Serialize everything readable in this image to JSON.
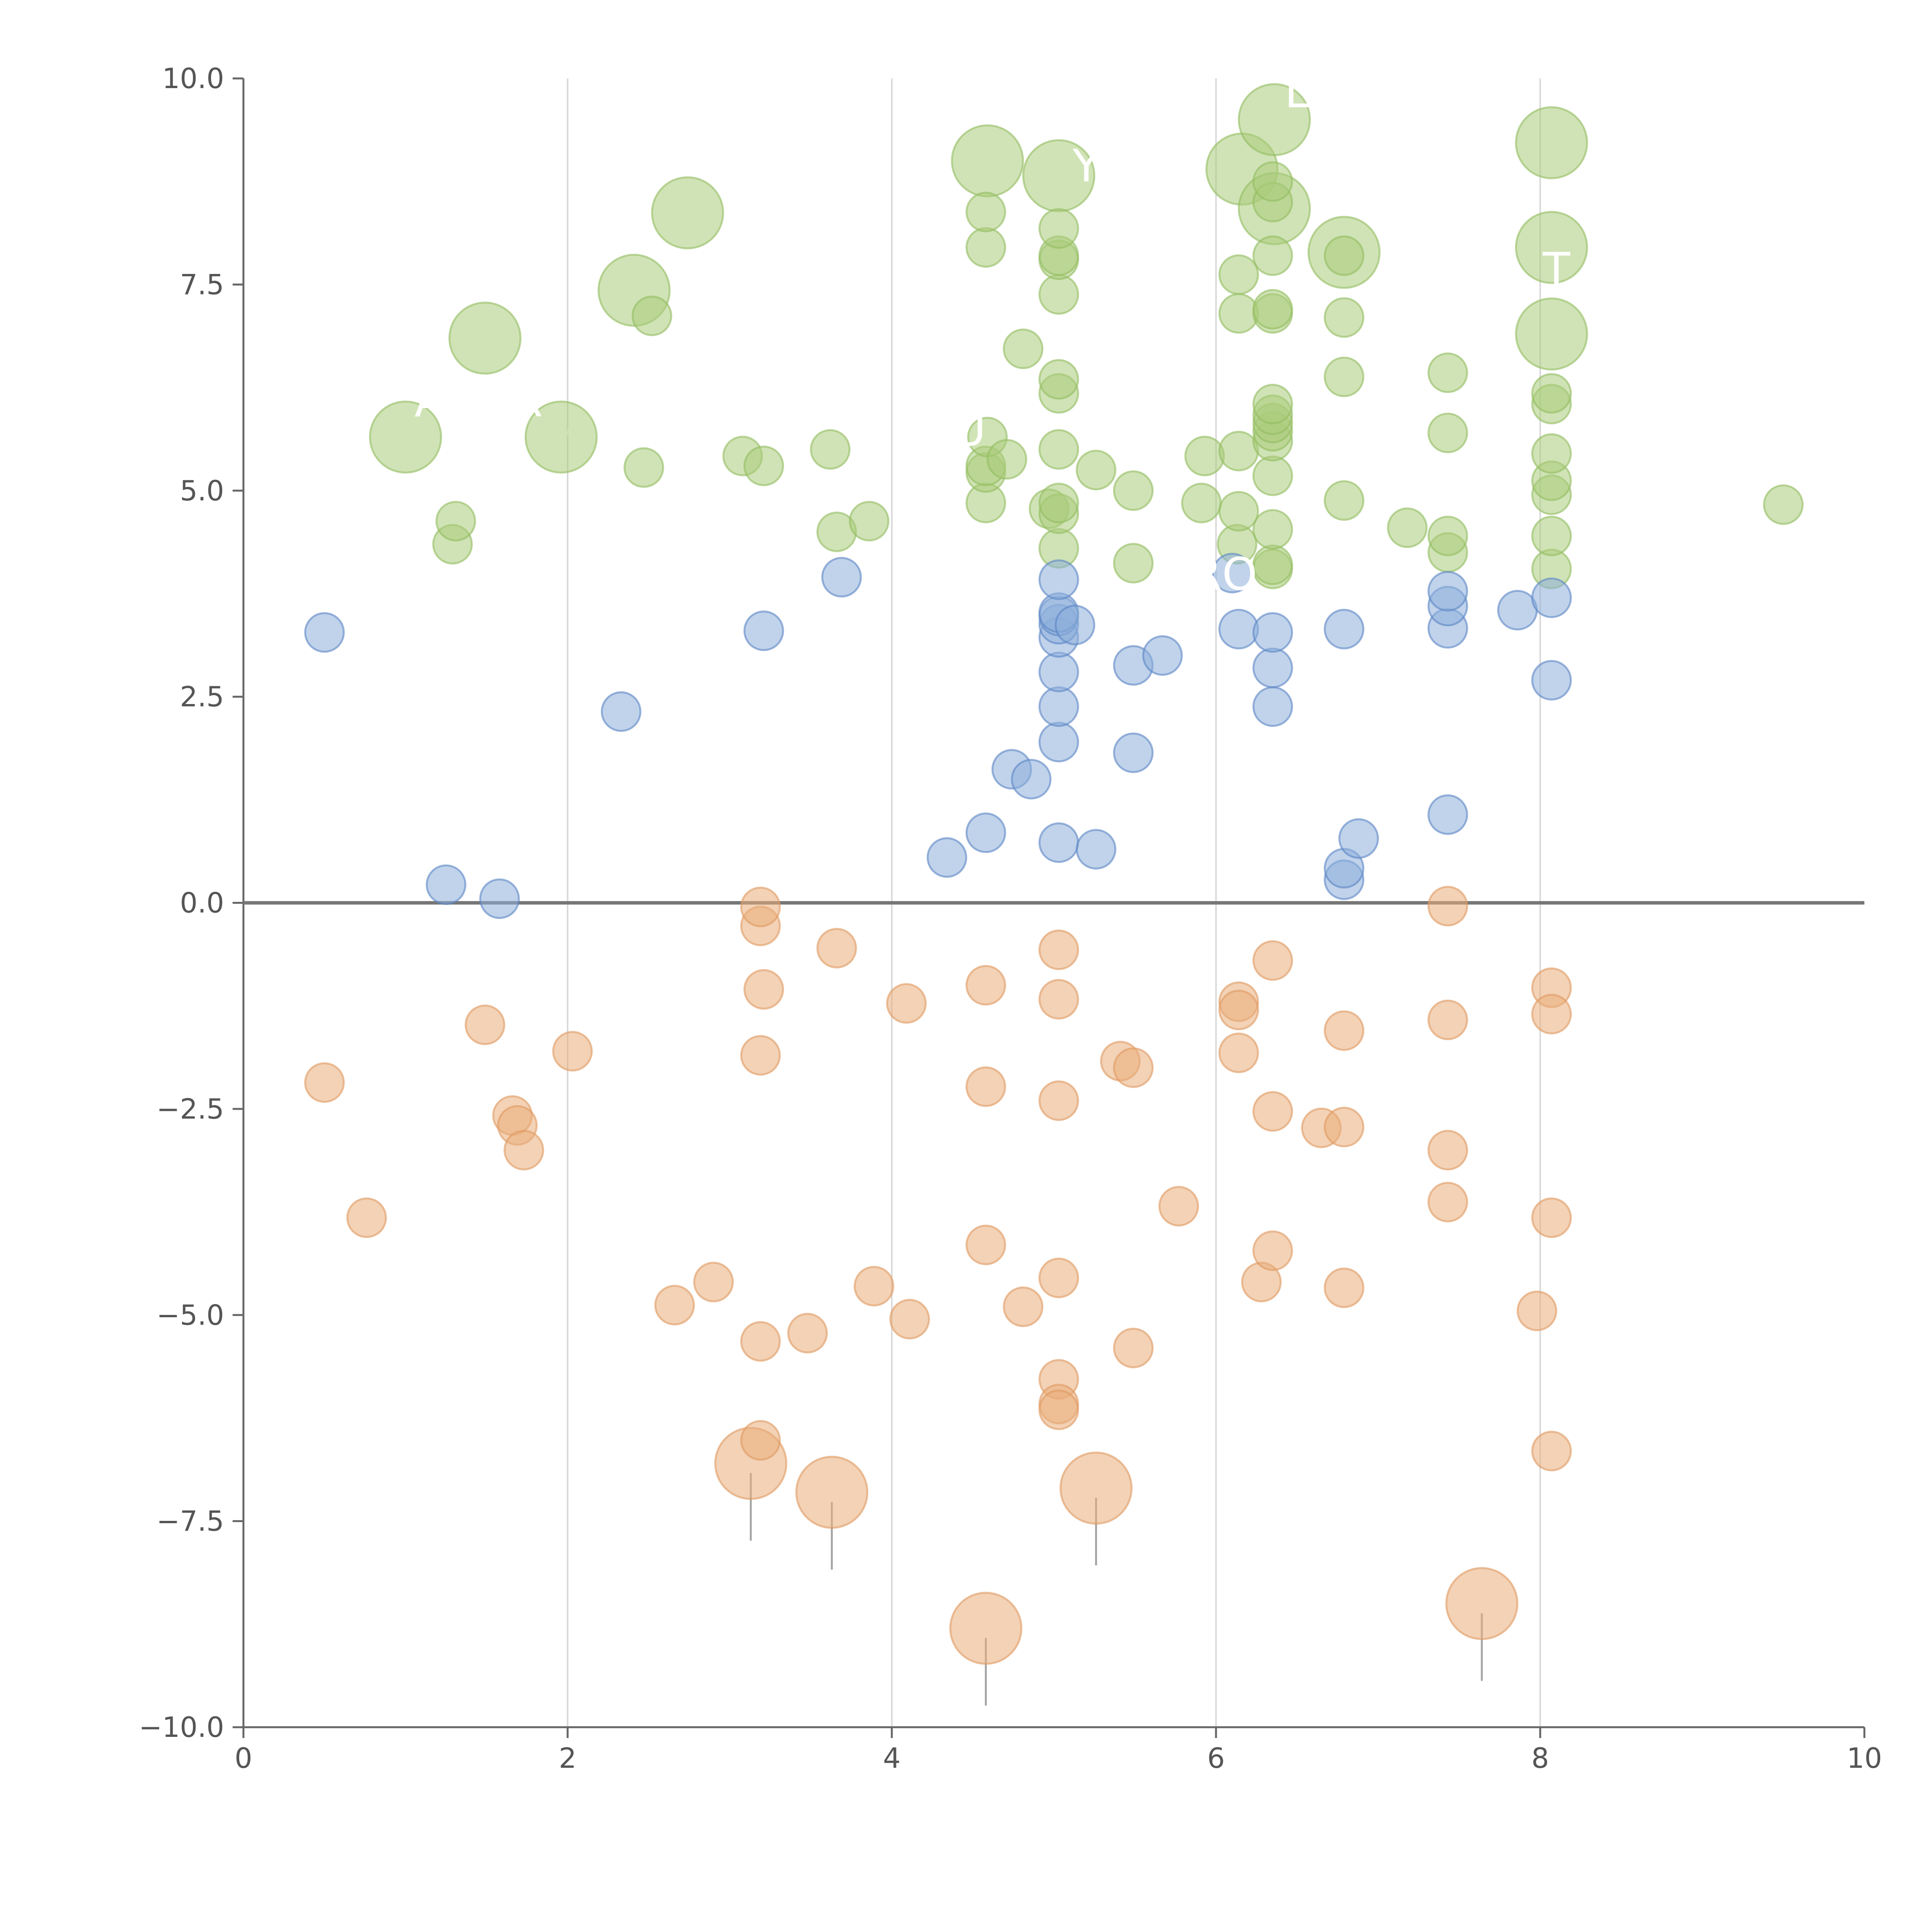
{
  "chart_data": {
    "type": "scatter",
    "title": "",
    "xlabel": "",
    "ylabel": "",
    "xlim": [
      0,
      10
    ],
    "ylim": [
      -10,
      10
    ],
    "grid": "vertical",
    "x_ticks": [
      0,
      2,
      4,
      6,
      8,
      10
    ],
    "x_tick_labels": [
      "0",
      "2",
      "4",
      "6",
      "8",
      "10"
    ],
    "y_ticks": [
      10,
      7.5,
      5,
      2.5,
      0,
      -2.5,
      -5,
      -7.5,
      -10
    ],
    "y_tick_labels": [
      "10.0",
      "7.5",
      "5.0",
      "2.5",
      "0.0",
      "−2.5",
      "−5.0",
      "−7.5",
      "−10.0"
    ],
    "reference_line_y": 0,
    "series": [
      {
        "name": "green",
        "color": "#a9cc7a",
        "edge_color": "#93bd60",
        "points": [
          [
            1.0,
            5.65,
            "l"
          ],
          [
            1.49,
            6.85,
            "l"
          ],
          [
            1.96,
            5.65,
            "l"
          ],
          [
            2.41,
            7.43,
            "l"
          ],
          [
            2.74,
            8.37,
            "l"
          ],
          [
            4.59,
            9.0,
            "l"
          ],
          [
            5.03,
            8.82,
            "l"
          ],
          [
            6.16,
            8.9,
            "l"
          ],
          [
            6.36,
            9.5,
            "l"
          ],
          [
            6.36,
            8.42,
            "l"
          ],
          [
            6.79,
            7.89,
            "l"
          ],
          [
            8.07,
            9.22,
            "l"
          ],
          [
            8.07,
            7.95,
            "l"
          ],
          [
            8.07,
            6.9,
            "l"
          ],
          [
            1.29,
            4.35
          ],
          [
            1.31,
            4.63
          ],
          [
            2.47,
            5.28
          ],
          [
            2.52,
            7.12
          ],
          [
            3.08,
            5.42
          ],
          [
            3.21,
            5.3
          ],
          [
            3.62,
            5.5
          ],
          [
            3.66,
            4.5
          ],
          [
            3.86,
            4.63
          ],
          [
            4.58,
            4.85
          ],
          [
            4.58,
            5.22
          ],
          [
            4.58,
            5.3
          ],
          [
            4.58,
            7.95
          ],
          [
            4.58,
            8.38
          ],
          [
            4.59,
            5.65
          ],
          [
            4.71,
            5.38
          ],
          [
            4.81,
            6.72
          ],
          [
            4.97,
            4.78
          ],
          [
            5.03,
            4.3
          ],
          [
            5.03,
            4.72
          ],
          [
            5.03,
            4.85
          ],
          [
            5.03,
            5.5
          ],
          [
            5.03,
            6.18
          ],
          [
            5.03,
            6.35
          ],
          [
            5.03,
            7.38
          ],
          [
            5.03,
            7.8
          ],
          [
            5.03,
            7.85
          ],
          [
            5.03,
            8.18
          ],
          [
            5.26,
            5.25
          ],
          [
            5.49,
            4.12
          ],
          [
            5.49,
            5.0
          ],
          [
            5.91,
            4.85
          ],
          [
            5.93,
            5.42
          ],
          [
            6.13,
            4.35
          ],
          [
            6.14,
            4.75
          ],
          [
            6.14,
            5.48
          ],
          [
            6.14,
            7.15
          ],
          [
            6.14,
            7.62
          ],
          [
            6.35,
            4.05
          ],
          [
            6.35,
            4.1
          ],
          [
            6.35,
            4.53
          ],
          [
            6.35,
            5.18
          ],
          [
            6.35,
            5.6
          ],
          [
            6.35,
            5.72
          ],
          [
            6.35,
            5.82
          ],
          [
            6.35,
            5.92
          ],
          [
            6.35,
            6.05
          ],
          [
            6.35,
            7.15
          ],
          [
            6.35,
            7.2
          ],
          [
            6.35,
            7.85
          ],
          [
            6.35,
            8.5
          ],
          [
            6.35,
            8.75
          ],
          [
            6.79,
            4.88
          ],
          [
            6.79,
            6.38
          ],
          [
            6.79,
            7.1
          ],
          [
            6.79,
            7.85
          ],
          [
            7.18,
            4.55
          ],
          [
            7.43,
            4.25
          ],
          [
            7.43,
            4.45
          ],
          [
            7.43,
            5.7
          ],
          [
            7.43,
            6.43
          ],
          [
            8.07,
            4.05
          ],
          [
            8.07,
            4.45
          ],
          [
            8.07,
            4.95
          ],
          [
            8.07,
            5.12
          ],
          [
            8.07,
            5.45
          ],
          [
            8.07,
            6.05
          ],
          [
            8.07,
            6.18
          ],
          [
            9.5,
            4.83
          ]
        ]
      },
      {
        "name": "blue",
        "color": "#8caedb",
        "edge_color": "#5b86c5",
        "points": [
          [
            0.5,
            3.28
          ],
          [
            1.25,
            0.22
          ],
          [
            1.58,
            0.05
          ],
          [
            2.33,
            2.32
          ],
          [
            3.21,
            3.3
          ],
          [
            3.69,
            3.95
          ],
          [
            4.34,
            0.55
          ],
          [
            4.58,
            0.85
          ],
          [
            4.74,
            1.62
          ],
          [
            4.86,
            1.5
          ],
          [
            5.03,
            0.73
          ],
          [
            5.03,
            1.95
          ],
          [
            5.03,
            2.38
          ],
          [
            5.03,
            2.8
          ],
          [
            5.03,
            3.22
          ],
          [
            5.03,
            3.38
          ],
          [
            5.03,
            3.48
          ],
          [
            5.03,
            3.52
          ],
          [
            5.03,
            3.92
          ],
          [
            5.13,
            3.37
          ],
          [
            5.26,
            0.65
          ],
          [
            5.49,
            1.82
          ],
          [
            5.49,
            2.88
          ],
          [
            5.67,
            3.0
          ],
          [
            6.1,
            4.0
          ],
          [
            6.14,
            3.32
          ],
          [
            6.35,
            2.38
          ],
          [
            6.35,
            2.85
          ],
          [
            6.35,
            3.28
          ],
          [
            6.79,
            0.28
          ],
          [
            6.79,
            0.42
          ],
          [
            6.79,
            3.32
          ],
          [
            6.88,
            0.78
          ],
          [
            7.43,
            1.07
          ],
          [
            7.43,
            3.33
          ],
          [
            7.43,
            3.6
          ],
          [
            7.43,
            3.78
          ],
          [
            7.86,
            3.55
          ],
          [
            8.07,
            2.7
          ],
          [
            8.07,
            3.7
          ]
        ]
      },
      {
        "name": "orange",
        "color": "#e9ad7a",
        "edge_color": "#df9a60",
        "points": [
          [
            3.13,
            -6.8,
            "l"
          ],
          [
            3.63,
            -7.15,
            "l"
          ],
          [
            4.58,
            -8.8,
            "l"
          ],
          [
            5.26,
            -7.1,
            "l"
          ],
          [
            7.64,
            -8.5,
            "l"
          ],
          [
            0.5,
            -2.18
          ],
          [
            0.76,
            -3.82
          ],
          [
            1.49,
            -1.48
          ],
          [
            1.66,
            -2.58
          ],
          [
            1.69,
            -2.7
          ],
          [
            1.73,
            -3.0
          ],
          [
            2.03,
            -1.8
          ],
          [
            2.66,
            -4.88
          ],
          [
            2.9,
            -4.6
          ],
          [
            3.19,
            -0.28
          ],
          [
            3.19,
            -0.05
          ],
          [
            3.19,
            -1.85
          ],
          [
            3.19,
            -5.32
          ],
          [
            3.19,
            -6.52
          ],
          [
            3.21,
            -1.05
          ],
          [
            3.48,
            -5.22
          ],
          [
            3.66,
            -0.55
          ],
          [
            3.89,
            -4.65
          ],
          [
            4.09,
            -1.22
          ],
          [
            4.11,
            -5.05
          ],
          [
            4.58,
            -1.0
          ],
          [
            4.58,
            -2.23
          ],
          [
            4.58,
            -4.15
          ],
          [
            4.81,
            -4.9
          ],
          [
            5.03,
            -0.57
          ],
          [
            5.03,
            -1.17
          ],
          [
            5.03,
            -2.4
          ],
          [
            5.03,
            -4.55
          ],
          [
            5.03,
            -5.78
          ],
          [
            5.03,
            -6.08
          ],
          [
            5.03,
            -6.15
          ],
          [
            5.41,
            -1.92
          ],
          [
            5.49,
            -2.0
          ],
          [
            5.49,
            -5.4
          ],
          [
            5.77,
            -3.68
          ],
          [
            6.14,
            -1.2
          ],
          [
            6.14,
            -1.3
          ],
          [
            6.14,
            -1.82
          ],
          [
            6.28,
            -4.6
          ],
          [
            6.35,
            -0.7
          ],
          [
            6.35,
            -2.53
          ],
          [
            6.35,
            -4.22
          ],
          [
            6.65,
            -2.73
          ],
          [
            6.79,
            -1.55
          ],
          [
            6.79,
            -2.72
          ],
          [
            6.79,
            -4.67
          ],
          [
            7.43,
            -0.04
          ],
          [
            7.43,
            -1.42
          ],
          [
            7.43,
            -3.0
          ],
          [
            7.43,
            -3.63
          ],
          [
            7.98,
            -4.95
          ],
          [
            8.07,
            -1.03
          ],
          [
            8.07,
            -1.35
          ],
          [
            8.07,
            -3.82
          ],
          [
            8.07,
            -6.65
          ]
        ]
      }
    ],
    "annotations": [
      {
        "text": "A",
        "x": 1.15,
        "y": 5.9
      },
      {
        "text": "R",
        "x": 1.75,
        "y": 5.9
      },
      {
        "text": "L",
        "x": 6.5,
        "y": 9.65
      },
      {
        "text": "Y",
        "x": 5.2,
        "y": 8.75
      },
      {
        "text": "RO",
        "x": 6.05,
        "y": 3.8
      },
      {
        "text": "T",
        "x": 8.1,
        "y": 7.5
      },
      {
        "text": "U",
        "x": 4.48,
        "y": 5.55
      }
    ]
  }
}
